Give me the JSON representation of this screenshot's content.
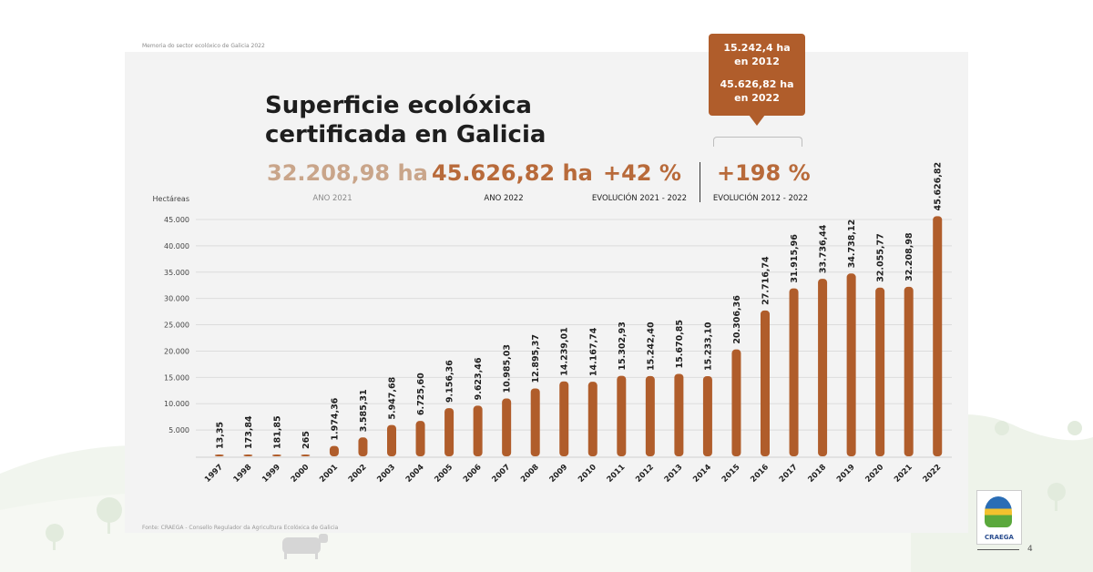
{
  "header": {
    "document_title": "Memoria do sector ecolóxico de Galicia 2022"
  },
  "title": {
    "line1": "Superficie ecolóxica",
    "line2": "certificada en Galicia"
  },
  "kpis": [
    {
      "value": "32.208,98 ha",
      "label": "ANO 2021",
      "color": "#c9a58a"
    },
    {
      "value": "45.626,82 ha",
      "label": "ANO 2022",
      "color": "#b86a3a"
    },
    {
      "value": "+42 %",
      "label": "EVOLUCIÓN 2021 - 2022",
      "color": "#b86a3a"
    },
    {
      "value": "+198 %",
      "label": "EVOLUCIÓN 2012 - 2022",
      "color": "#b86a3a"
    }
  ],
  "callout": {
    "line1": "15.242,4 ha",
    "line2": "en 2012",
    "line3": "45.626,82 ha",
    "line4": "en 2022"
  },
  "chart_data": {
    "type": "bar",
    "ylabel": "Hectáreas",
    "ylim": [
      0,
      45000
    ],
    "yticks": [
      "45.000",
      "40.000",
      "35.000",
      "30.000",
      "25.000",
      "20.000",
      "15.000",
      "10.000",
      "5.000"
    ],
    "ytick_values": [
      45000,
      40000,
      35000,
      30000,
      25000,
      20000,
      15000,
      10000,
      5000
    ],
    "categories": [
      "1997",
      "1998",
      "1999",
      "2000",
      "2001",
      "2002",
      "2003",
      "2004",
      "2005",
      "2006",
      "2007",
      "2008",
      "2009",
      "2010",
      "2011",
      "2012",
      "2013",
      "2014",
      "2015",
      "2016",
      "2017",
      "2018",
      "2019",
      "2020",
      "2021",
      "2022"
    ],
    "values": [
      13.35,
      173.84,
      181.85,
      265,
      1974.36,
      3585.31,
      5947.68,
      6725.6,
      9156.36,
      9623.46,
      10985.03,
      12895.37,
      14239.01,
      14167.74,
      15302.93,
      15242.4,
      15670.85,
      15233.1,
      20306.36,
      27716.74,
      31915.96,
      33736.44,
      34738.12,
      32055.77,
      32208.98,
      45626.82
    ],
    "value_labels": [
      "13,35",
      "173,84",
      "181,85",
      "265",
      "1.974,36",
      "3.585,31",
      "5.947,68",
      "6.725,60",
      "9.156,36",
      "9.623,46",
      "10.985,03",
      "12.895,37",
      "14.239,01",
      "14.167,74",
      "15.302,93",
      "15.242,40",
      "15.670,85",
      "15.233,10",
      "20.306,36",
      "27.716,74",
      "31.915,96",
      "33.736,44",
      "34.738,12",
      "32.055,77",
      "32.208,98",
      "45.626,82"
    ],
    "bar_color": "#b05d2b",
    "grid": true
  },
  "source": "Fonte: CRAEGA - Consello Regulador da Agricultura Ecolóxica de Galicia",
  "logo": {
    "text": "CRAEGA"
  },
  "page_number": "4"
}
